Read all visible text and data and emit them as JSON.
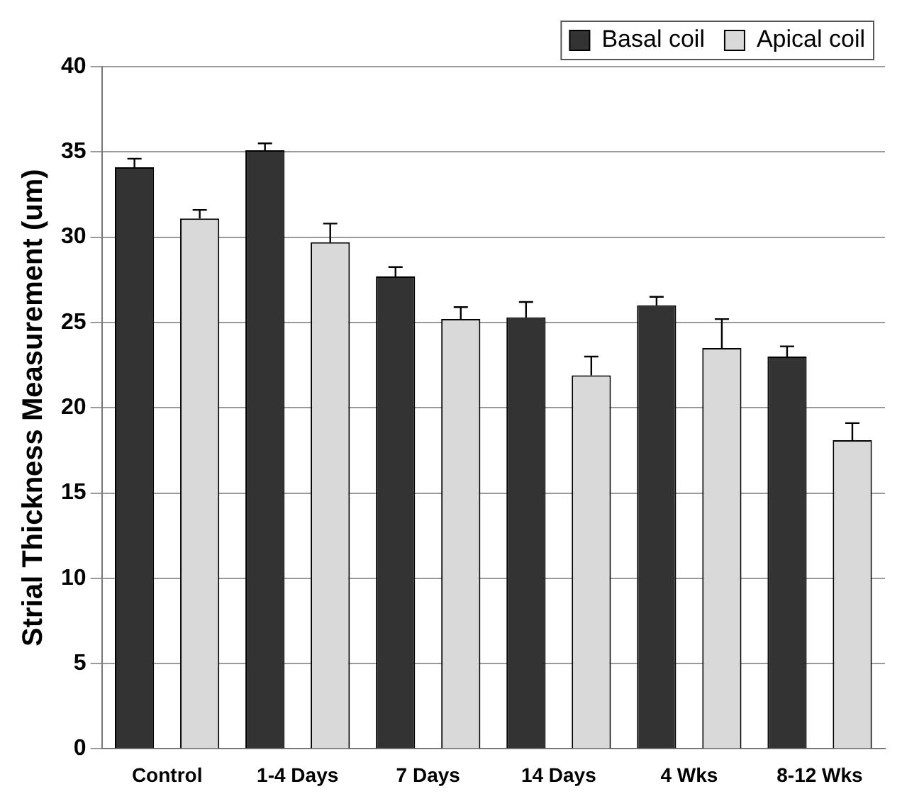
{
  "chart_data": {
    "type": "bar",
    "ylabel": "Strial Thickness Measurement (um)",
    "categories": [
      "Control",
      "1-4 Days",
      "7 Days",
      "14 Days",
      "4 Wks",
      "8-12 Wks"
    ],
    "series": [
      {
        "name": "Basal coil",
        "color": "#333333",
        "values": [
          34.1,
          35.1,
          27.7,
          25.3,
          26.0,
          23.0
        ],
        "errors": [
          [
            34.1,
            34.6
          ],
          [
            35.1,
            35.5
          ],
          [
            27.7,
            28.25
          ],
          [
            25.3,
            26.2
          ],
          [
            26.0,
            26.5
          ],
          [
            23.0,
            23.6
          ]
        ]
      },
      {
        "name": "Apical coil",
        "color": "#d9d9d9",
        "values": [
          31.1,
          29.7,
          25.2,
          21.9,
          23.5,
          18.1
        ],
        "errors": [
          [
            31.1,
            31.6
          ],
          [
            29.7,
            30.8
          ],
          [
            25.2,
            25.9
          ],
          [
            21.9,
            23.0
          ],
          [
            23.5,
            25.2
          ],
          [
            18.1,
            19.1
          ]
        ]
      }
    ],
    "ylim": [
      0,
      40
    ],
    "yticks": [
      0,
      5,
      10,
      15,
      20,
      25,
      30,
      35,
      40
    ],
    "grid": "y",
    "legend": "top right"
  }
}
